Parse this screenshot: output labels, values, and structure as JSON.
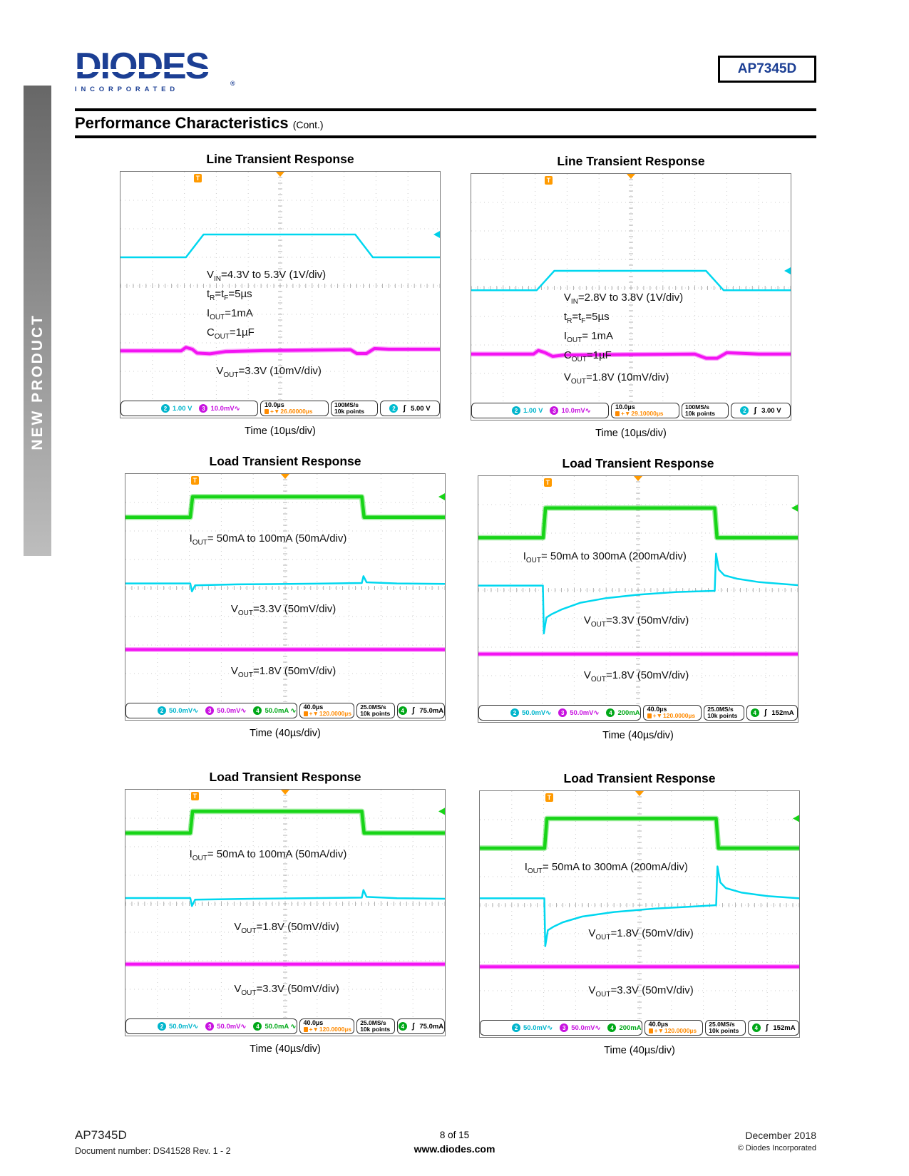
{
  "brand": {
    "word": "DIODES",
    "sub": "INCORPORATED",
    "reg": "®"
  },
  "part_number": "AP7345D",
  "section": {
    "title": "Performance Characteristics",
    "cont": "(Cont.)"
  },
  "sidebar_label": "NEW PRODUCT",
  "scope_ui": {
    "trigger_marker": "T",
    "top_marker": "",
    "delay_marker": "+▼",
    "slope": "ʃ"
  },
  "footer": {
    "part": "AP7345D",
    "doc": "Document number: DS41528  Rev. 1 - 2",
    "page": "8 of 15",
    "site": "www.diodes.com",
    "date": "December 2018",
    "copyright": "© Diodes Incorporated"
  },
  "charts": [
    {
      "title": "Line Transient Response",
      "caption": "Time (10µs/div)",
      "annotations": [
        "V_{IN}=4.3V to 5.3V (1V/div)",
        "t_{R}=t_{F}=5µs",
        "I_{OUT}=1mA",
        "C_{OUT}=1µF",
        "V_{OUT}=3.3V (10mV/div)"
      ],
      "trigger_pos_pct": 23,
      "trig_arrow": {
        "pct": 27.5,
        "color": "#00cfe8"
      },
      "traces": [
        {
          "name": "vin",
          "color": "#00d7ef",
          "width": 2.5,
          "points": [
            [
              0,
              37.5
            ],
            [
              20.5,
              37.5
            ],
            [
              26,
              27.5
            ],
            [
              73.5,
              27.5
            ],
            [
              79,
              37.5
            ],
            [
              100,
              37.5
            ]
          ]
        },
        {
          "name": "vout",
          "color": "#f313f3",
          "width": 4,
          "points": [
            [
              0,
              78.5
            ],
            [
              19,
              78.5
            ],
            [
              20.5,
              77
            ],
            [
              22.5,
              77.8
            ],
            [
              24,
              79.5
            ],
            [
              28,
              79.8
            ],
            [
              33,
              78.8
            ],
            [
              45,
              78.4
            ],
            [
              60,
              78.2
            ],
            [
              72,
              78
            ],
            [
              74,
              79.7
            ],
            [
              77,
              79.7
            ],
            [
              79.5,
              77.5
            ],
            [
              84,
              77.8
            ],
            [
              100,
              77.8
            ]
          ]
        }
      ],
      "status": {
        "channels": [
          {
            "n": "2",
            "value": "1.00 V",
            "color": "#00b5cc"
          },
          {
            "n": "3",
            "value": "10.0mV∿",
            "color": "#c813e0"
          }
        ],
        "time": "10.0µs",
        "delay": "26.60000µs",
        "rate": "100MS/s",
        "points": "10k points",
        "trigger": {
          "n": "2",
          "color": "#00bcd0",
          "value": "5.00 V"
        }
      }
    },
    {
      "title": "Line Transient Response",
      "caption": "Time (10µs/div)",
      "annotations": [
        "V_{IN}=2.8V to 3.8V (1V/div)",
        "t_{R}=t_{F}=5µs",
        "I_{OUT}= 1mA",
        "C_{OUT}=1µF",
        "V_{OUT}=1.8V (10mV/div)"
      ],
      "trigger_pos_pct": 23,
      "trig_arrow": {
        "pct": 42.5,
        "color": "#00cfe8"
      },
      "traces": [
        {
          "name": "vin",
          "color": "#00d7ef",
          "width": 2.5,
          "points": [
            [
              0,
              51
            ],
            [
              20.5,
              51
            ],
            [
              26,
              42.5
            ],
            [
              73.5,
              42.5
            ],
            [
              79,
              51
            ],
            [
              100,
              51
            ]
          ]
        },
        {
          "name": "vout",
          "color": "#f313f3",
          "width": 4,
          "points": [
            [
              0,
              79
            ],
            [
              19.5,
              79
            ],
            [
              21,
              77.4
            ],
            [
              23,
              78.3
            ],
            [
              25.5,
              80
            ],
            [
              29,
              79.4
            ],
            [
              50,
              79.2
            ],
            [
              70,
              79
            ],
            [
              73.5,
              80.8
            ],
            [
              77,
              80.8
            ],
            [
              80,
              78.4
            ],
            [
              90,
              79
            ],
            [
              100,
              79
            ]
          ]
        }
      ],
      "status": {
        "channels": [
          {
            "n": "2",
            "value": "1.00 V",
            "color": "#00b5cc"
          },
          {
            "n": "3",
            "value": "10.0mV∿",
            "color": "#c813e0"
          }
        ],
        "time": "10.0µs",
        "delay": "29.10000µs",
        "rate": "100MS/s",
        "points": "10k points",
        "trigger": {
          "n": "2",
          "color": "#00bcd0",
          "value": "3.00 V"
        }
      }
    },
    {
      "title": "Load Transient Response",
      "caption": "Time (40µs/div)",
      "annotations": [
        "I_{OUT}= 50mA to 100mA (50mA/div)",
        "V_{OUT}=3.3V (50mV/div)",
        "V_{OUT}=1.8V (50mV/div)"
      ],
      "trigger_pos_pct": 20.5,
      "trig_arrow": {
        "pct": 10,
        "color": "#17d417"
      },
      "traces": [
        {
          "name": "iout",
          "color": "#17d417",
          "width": 4.5,
          "points": [
            [
              0,
              19
            ],
            [
              20.3,
              19
            ],
            [
              21,
              10
            ],
            [
              74,
              10
            ],
            [
              74.7,
              19
            ],
            [
              100,
              19
            ]
          ]
        },
        {
          "name": "vout33",
          "color": "#00d7ef",
          "width": 2.5,
          "points": [
            [
              0,
              48
            ],
            [
              20.3,
              48
            ],
            [
              20.8,
              51.5
            ],
            [
              21.8,
              48.8
            ],
            [
              35,
              48.4
            ],
            [
              60,
              48.1
            ],
            [
              74,
              47.8
            ],
            [
              74.5,
              44.8
            ],
            [
              75.5,
              47.5
            ],
            [
              85,
              48
            ],
            [
              100,
              48.2
            ]
          ]
        },
        {
          "name": "vout18",
          "color": "#f313f3",
          "width": 4,
          "points": [
            [
              0,
              77
            ],
            [
              100,
              77
            ]
          ]
        }
      ],
      "status": {
        "channels": [
          {
            "n": "2",
            "value": "50.0mV∿",
            "color": "#00b5cc"
          },
          {
            "n": "3",
            "value": "50.0mV∿",
            "color": "#c813e0"
          },
          {
            "n": "4",
            "value": "50.0mA ∿",
            "color": "#00a818"
          }
        ],
        "time": "40.0µs",
        "delay": "120.0000µs",
        "rate": "25.0MS/s",
        "points": "10k points",
        "trigger": {
          "n": "4",
          "color": "#00a818",
          "value": "75.0mA"
        }
      }
    },
    {
      "title": "Load Transient Response",
      "caption": "Time (40µs/div)",
      "annotations": [
        "I_{OUT}= 50mA to 300mA (200mA/div)",
        "V_{OUT}=3.3V (50mV/div)",
        "V_{OUT}=1.8V (50mV/div)"
      ],
      "trigger_pos_pct": 20.5,
      "trig_arrow": {
        "pct": 14,
        "color": "#17d417"
      },
      "traces": [
        {
          "name": "iout",
          "color": "#17d417",
          "width": 4.5,
          "points": [
            [
              0,
              27
            ],
            [
              20.3,
              27
            ],
            [
              21,
              14
            ],
            [
              74,
              14
            ],
            [
              74.7,
              27
            ],
            [
              100,
              27
            ]
          ]
        },
        {
          "name": "vout33",
          "color": "#00d7ef",
          "width": 2.5,
          "points": [
            [
              0,
              48
            ],
            [
              20.2,
              48
            ],
            [
              20.5,
              69
            ],
            [
              21.3,
              62
            ],
            [
              23,
              60.5
            ],
            [
              26,
              58.5
            ],
            [
              32,
              55.5
            ],
            [
              40,
              53.5
            ],
            [
              50,
              52
            ],
            [
              62,
              50.8
            ],
            [
              74,
              50.3
            ],
            [
              74.4,
              34
            ],
            [
              75.3,
              41
            ],
            [
              77,
              43.5
            ],
            [
              81,
              45
            ],
            [
              88,
              46.5
            ],
            [
              100,
              47.8
            ]
          ]
        },
        {
          "name": "vout18",
          "color": "#f313f3",
          "width": 4,
          "points": [
            [
              0,
              78
            ],
            [
              100,
              78
            ]
          ]
        }
      ],
      "status": {
        "channels": [
          {
            "n": "2",
            "value": "50.0mV∿",
            "color": "#00b5cc"
          },
          {
            "n": "3",
            "value": "50.0mV∿",
            "color": "#c813e0"
          },
          {
            "n": "4",
            "value": "200mA",
            "color": "#00a818"
          }
        ],
        "time": "40.0µs",
        "delay": "120.0000µs",
        "rate": "25.0MS/s",
        "points": "10k points",
        "trigger": {
          "n": "4",
          "color": "#00a818",
          "value": "152mA"
        }
      }
    },
    {
      "title": "Load Transient Response",
      "caption": "Time (40µs/div)",
      "annotations": [
        "I_{OUT}= 50mA to 100mA (50mA/div)",
        "V_{OUT}=1.8V (50mV/div)",
        "V_{OUT}=3.3V (50mV/div)"
      ],
      "trigger_pos_pct": 20.5,
      "trig_arrow": {
        "pct": 9.5,
        "color": "#17d417"
      },
      "traces": [
        {
          "name": "iout",
          "color": "#17d417",
          "width": 4.5,
          "points": [
            [
              0,
              19
            ],
            [
              20.3,
              19
            ],
            [
              21,
              9.5
            ],
            [
              74,
              9.5
            ],
            [
              74.7,
              19
            ],
            [
              100,
              19
            ]
          ]
        },
        {
          "name": "vout18",
          "color": "#00d7ef",
          "width": 2.5,
          "points": [
            [
              0,
              47.5
            ],
            [
              20.3,
              47.5
            ],
            [
              20.8,
              51
            ],
            [
              21.8,
              48.2
            ],
            [
              40,
              47.8
            ],
            [
              74,
              47.3
            ],
            [
              74.5,
              44
            ],
            [
              75.5,
              47
            ],
            [
              85,
              47.6
            ],
            [
              100,
              47.8
            ]
          ]
        },
        {
          "name": "vout33",
          "color": "#f313f3",
          "width": 4,
          "points": [
            [
              0,
              76.5
            ],
            [
              100,
              76.5
            ]
          ]
        }
      ],
      "status": {
        "channels": [
          {
            "n": "2",
            "value": "50.0mV∿",
            "color": "#00b5cc"
          },
          {
            "n": "3",
            "value": "50.0mV∿",
            "color": "#c813e0"
          },
          {
            "n": "4",
            "value": "50.0mA ∿",
            "color": "#00a818"
          }
        ],
        "time": "40.0µs",
        "delay": "120.0000µs",
        "rate": "25.0MS/s",
        "points": "10k points",
        "trigger": {
          "n": "4",
          "color": "#00a818",
          "value": "75.0mA"
        }
      }
    },
    {
      "title": "Load Transient Response",
      "caption": "Time (40µs/div)",
      "annotations": [
        "I_{OUT}= 50mA to 300mA (200mA/div)",
        "V_{OUT}=1.8V (50mV/div)",
        "V_{OUT}=3.3V (50mV/div)"
      ],
      "trigger_pos_pct": 20.5,
      "trig_arrow": {
        "pct": 12,
        "color": "#17d417"
      },
      "traces": [
        {
          "name": "iout",
          "color": "#17d417",
          "width": 4.5,
          "points": [
            [
              0,
              25
            ],
            [
              20.3,
              25
            ],
            [
              21,
              12
            ],
            [
              74,
              12
            ],
            [
              74.7,
              25
            ],
            [
              100,
              25
            ]
          ]
        },
        {
          "name": "vout18",
          "color": "#00d7ef",
          "width": 2.5,
          "points": [
            [
              0,
              47
            ],
            [
              20.2,
              47
            ],
            [
              20.5,
              68
            ],
            [
              21.3,
              61
            ],
            [
              23,
              59.5
            ],
            [
              26,
              57.5
            ],
            [
              32,
              55
            ],
            [
              42,
              53
            ],
            [
              55,
              51.5
            ],
            [
              68,
              50.5
            ],
            [
              74,
              50
            ],
            [
              74.4,
              33
            ],
            [
              75.3,
              40
            ],
            [
              77,
              42.5
            ],
            [
              82,
              44.5
            ],
            [
              90,
              46
            ],
            [
              100,
              47
            ]
          ]
        },
        {
          "name": "vout33",
          "color": "#f313f3",
          "width": 4,
          "points": [
            [
              0,
              77
            ],
            [
              100,
              77
            ]
          ]
        }
      ],
      "status": {
        "channels": [
          {
            "n": "2",
            "value": "50.0mV∿",
            "color": "#00b5cc"
          },
          {
            "n": "3",
            "value": "50.0mV∿",
            "color": "#c813e0"
          },
          {
            "n": "4",
            "value": "200mA",
            "color": "#00a818"
          }
        ],
        "time": "40.0µs",
        "delay": "120.0000µs",
        "rate": "25.0MS/s",
        "points": "10k points",
        "trigger": {
          "n": "4",
          "color": "#00a818",
          "value": "152mA"
        }
      }
    }
  ]
}
